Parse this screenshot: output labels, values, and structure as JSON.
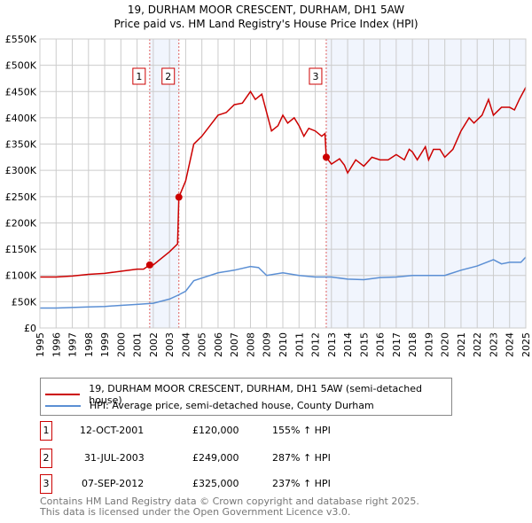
{
  "chart_data": {
    "type": "line",
    "title": "19, DURHAM MOOR CRESCENT, DURHAM, DH1 5AW",
    "subtitle": "Price paid vs. HM Land Registry's House Price Index (HPI)",
    "xlim": [
      1995,
      2025
    ],
    "ylim": [
      0,
      550000
    ],
    "yticks": [
      0,
      50000,
      100000,
      150000,
      200000,
      250000,
      300000,
      350000,
      400000,
      450000,
      500000,
      550000
    ],
    "ytick_labels": [
      "£0",
      "£50K",
      "£100K",
      "£150K",
      "£200K",
      "£250K",
      "£300K",
      "£350K",
      "£400K",
      "£450K",
      "£500K",
      "£550K"
    ],
    "xticks": [
      "1995",
      "1996",
      "1997",
      "1998",
      "1999",
      "2000",
      "2001",
      "2002",
      "2003",
      "2004",
      "2005",
      "2006",
      "2007",
      "2008",
      "2009",
      "2010",
      "2011",
      "2012",
      "2013",
      "2014",
      "2015",
      "2016",
      "2017",
      "2018",
      "2019",
      "2020",
      "2021",
      "2022",
      "2023",
      "2024",
      "2025"
    ],
    "grid": true,
    "series": [
      {
        "name": "19, DURHAM MOOR CRESCENT, DURHAM, DH1 5AW (semi-detached house)",
        "color": "#cc0000",
        "x": [
          1995,
          1996,
          1997,
          1998,
          1999,
          2000,
          2001,
          2001.4,
          2001.78,
          2002,
          2003,
          2003.5,
          2003.58,
          2004,
          2004.5,
          2005,
          2006,
          2006.5,
          2007,
          2007.5,
          2008,
          2008.3,
          2008.7,
          2009,
          2009.3,
          2009.7,
          2010,
          2010.3,
          2010.7,
          2011,
          2011.3,
          2011.6,
          2012,
          2012.4,
          2012.6,
          2012.68,
          2013,
          2013.5,
          2013.8,
          2014,
          2014.5,
          2015,
          2015.5,
          2016,
          2016.5,
          2017,
          2017.5,
          2017.8,
          2018,
          2018.3,
          2018.8,
          2019,
          2019.3,
          2019.7,
          2020,
          2020.5,
          2021,
          2021.5,
          2021.8,
          2022.3,
          2022.7,
          2023,
          2023.5,
          2024,
          2024.3,
          2024.6,
          2025
        ],
        "y": [
          97000,
          97000,
          99000,
          102000,
          104000,
          108000,
          112000,
          112000,
          120000,
          120000,
          145000,
          160000,
          249000,
          280000,
          350000,
          365000,
          405000,
          410000,
          425000,
          428000,
          450000,
          435000,
          445000,
          410000,
          375000,
          385000,
          405000,
          390000,
          400000,
          385000,
          365000,
          380000,
          375000,
          365000,
          370000,
          325000,
          312000,
          322000,
          310000,
          295000,
          320000,
          308000,
          325000,
          320000,
          320000,
          330000,
          320000,
          340000,
          335000,
          320000,
          345000,
          320000,
          340000,
          340000,
          325000,
          340000,
          375000,
          400000,
          390000,
          405000,
          435000,
          405000,
          420000,
          420000,
          415000,
          435000,
          458000
        ]
      },
      {
        "name": "HPI: Average price, semi-detached house, County Durham",
        "color": "#5b8fd4",
        "x": [
          1995,
          1996,
          1997,
          1998,
          1999,
          2000,
          2001,
          2002,
          2003,
          2003.5,
          2004,
          2004.5,
          2005,
          2006,
          2007,
          2008,
          2008.5,
          2009,
          2010,
          2011,
          2012,
          2013,
          2014,
          2015,
          2016,
          2017,
          2018,
          2019,
          2020,
          2021,
          2022,
          2023,
          2023.5,
          2024,
          2024.7,
          2025
        ],
        "y": [
          38000,
          38000,
          39000,
          40000,
          41000,
          43000,
          45000,
          47000,
          55000,
          62000,
          70000,
          90000,
          95000,
          105000,
          110000,
          117000,
          115000,
          100000,
          105000,
          100000,
          97000,
          97000,
          93000,
          92000,
          96000,
          97000,
          100000,
          100000,
          100000,
          110000,
          118000,
          130000,
          122000,
          125000,
          125000,
          135000
        ]
      }
    ],
    "sales": [
      {
        "label": "1",
        "x": 2001.78,
        "price": 120000,
        "date": "12-OCT-2001",
        "price_text": "£120,000",
        "hpi_text": "155% ↑ HPI"
      },
      {
        "label": "2",
        "x": 2003.58,
        "price": 249000,
        "date": "31-JUL-2003",
        "price_text": "£249,000",
        "hpi_text": "287% ↑ HPI"
      },
      {
        "label": "3",
        "x": 2012.68,
        "price": 325000,
        "date": "07-SEP-2012",
        "price_text": "£325,000",
        "hpi_text": "237% ↑ HPI"
      }
    ],
    "shaded": [
      [
        2001.78,
        2003.58
      ],
      [
        2012.68,
        2025
      ]
    ]
  },
  "footer": {
    "line1": "Contains HM Land Registry data © Crown copyright and database right 2025.",
    "line2": "This data is licensed under the Open Government Licence v3.0."
  }
}
